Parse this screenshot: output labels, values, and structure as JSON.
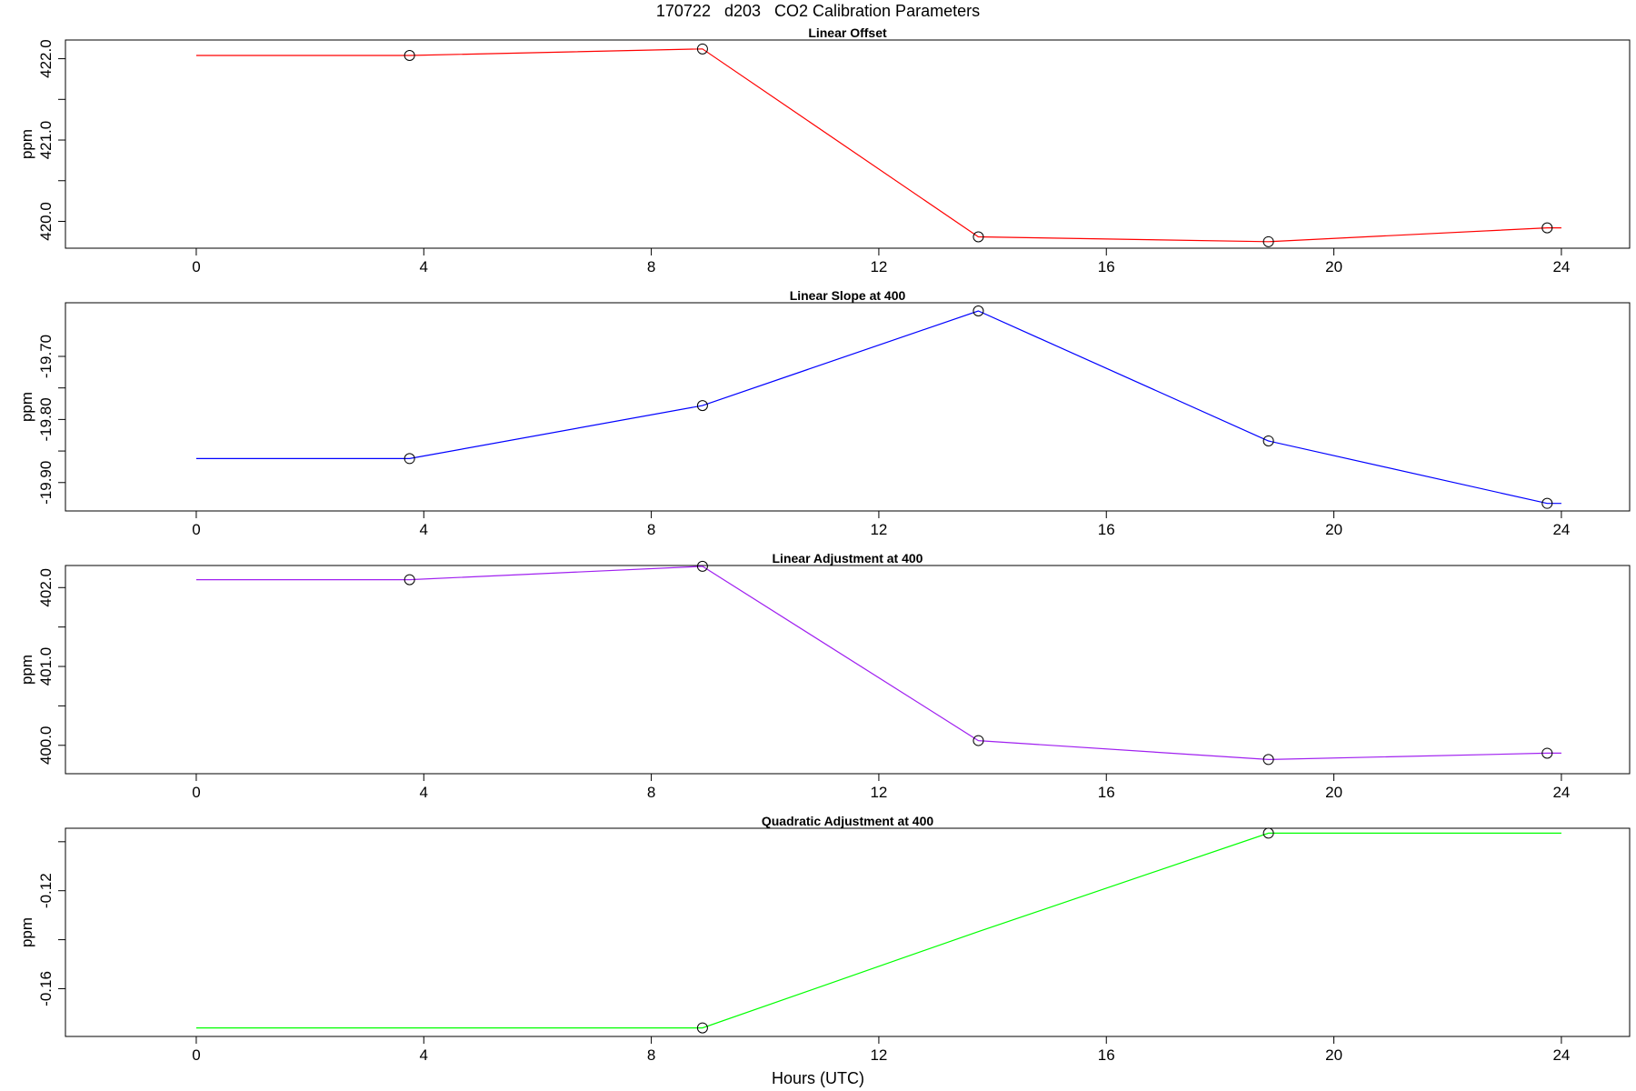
{
  "figure": {
    "title": "170722   d203   CO2 Calibration Parameters",
    "xlabel": "Hours (UTC)"
  },
  "chart_data": [
    {
      "type": "line",
      "title": "Linear Offset",
      "ylabel": "ppm",
      "color": "#ff0000",
      "xlim": [
        -2.3,
        25.2
      ],
      "ylim": [
        419.67,
        422.23
      ],
      "xticks": [
        0,
        4,
        8,
        12,
        16,
        20,
        24
      ],
      "xtick_labels": [
        "0",
        "4",
        "8",
        "12",
        "16",
        "20",
        "24"
      ],
      "yticks": [
        420.0,
        420.5,
        421.0,
        421.5,
        422.0
      ],
      "ytick_labels": [
        "420.0",
        "",
        "421.0",
        "",
        "422.0"
      ],
      "line": {
        "x": [
          0,
          3.75,
          8.9,
          13.75,
          18.85,
          23.75,
          24
        ],
        "y": [
          422.04,
          422.04,
          422.12,
          419.81,
          419.75,
          419.92,
          419.92
        ]
      },
      "points": {
        "x": [
          3.75,
          8.9,
          13.75,
          18.85,
          23.75
        ],
        "y": [
          422.04,
          422.12,
          419.81,
          419.75,
          419.92
        ]
      }
    },
    {
      "type": "line",
      "title": "Linear Slope at 400",
      "ylabel": "ppm",
      "color": "#0000ff",
      "xlim": [
        -2.3,
        25.2
      ],
      "ylim": [
        -19.945,
        -19.615
      ],
      "xticks": [
        0,
        4,
        8,
        12,
        16,
        20,
        24
      ],
      "xtick_labels": [
        "0",
        "4",
        "8",
        "12",
        "16",
        "20",
        "24"
      ],
      "yticks": [
        -19.9,
        -19.85,
        -19.8,
        -19.75,
        -19.7
      ],
      "ytick_labels": [
        "-19.90",
        "",
        "-19.80",
        "",
        "-19.70"
      ],
      "line": {
        "x": [
          0,
          3.75,
          8.9,
          13.75,
          18.85,
          23.75,
          24
        ],
        "y": [
          -19.862,
          -19.862,
          -19.778,
          -19.628,
          -19.834,
          -19.933,
          -19.933
        ]
      },
      "points": {
        "x": [
          3.75,
          8.9,
          13.75,
          18.85,
          23.75
        ],
        "y": [
          -19.862,
          -19.778,
          -19.628,
          -19.834,
          -19.933
        ]
      }
    },
    {
      "type": "line",
      "title": "Linear Adjustment at 400",
      "ylabel": "ppm",
      "color": "#a020f0",
      "xlim": [
        -2.3,
        25.2
      ],
      "ylim": [
        399.64,
        402.28
      ],
      "xticks": [
        0,
        4,
        8,
        12,
        16,
        20,
        24
      ],
      "xtick_labels": [
        "0",
        "4",
        "8",
        "12",
        "16",
        "20",
        "24"
      ],
      "yticks": [
        400.0,
        400.5,
        401.0,
        401.5,
        402.0
      ],
      "ytick_labels": [
        "400.0",
        "",
        "401.0",
        "",
        "402.0"
      ],
      "line": {
        "x": [
          0,
          3.75,
          8.9,
          13.75,
          18.85,
          23.75,
          24
        ],
        "y": [
          402.1,
          402.1,
          402.27,
          400.06,
          399.82,
          399.9,
          399.9
        ]
      },
      "points": {
        "x": [
          3.75,
          8.9,
          13.75,
          18.85,
          23.75
        ],
        "y": [
          402.1,
          402.27,
          400.06,
          399.82,
          399.9
        ]
      }
    },
    {
      "type": "line",
      "title": "Quadratic Adjustment at 400",
      "ylabel": "ppm",
      "color": "#00ff00",
      "xlim": [
        -2.3,
        25.2
      ],
      "ylim": [
        -0.1795,
        -0.0945
      ],
      "xticks": [
        0,
        4,
        8,
        12,
        16,
        20,
        24
      ],
      "xtick_labels": [
        "0",
        "4",
        "8",
        "12",
        "16",
        "20",
        "24"
      ],
      "yticks": [
        -0.16,
        -0.14,
        -0.12,
        -0.1
      ],
      "ytick_labels": [
        "-0.16",
        "",
        "-0.12",
        ""
      ],
      "line": {
        "x": [
          0,
          3.75,
          8.9,
          13.75,
          18.85,
          23.75,
          24
        ],
        "y": [
          -0.176,
          -0.176,
          -0.176,
          -0.1367,
          -0.0965,
          -0.0965,
          -0.0965
        ]
      },
      "points": {
        "x": [
          8.9,
          18.85
        ],
        "y": [
          -0.176,
          -0.0965
        ]
      }
    }
  ]
}
